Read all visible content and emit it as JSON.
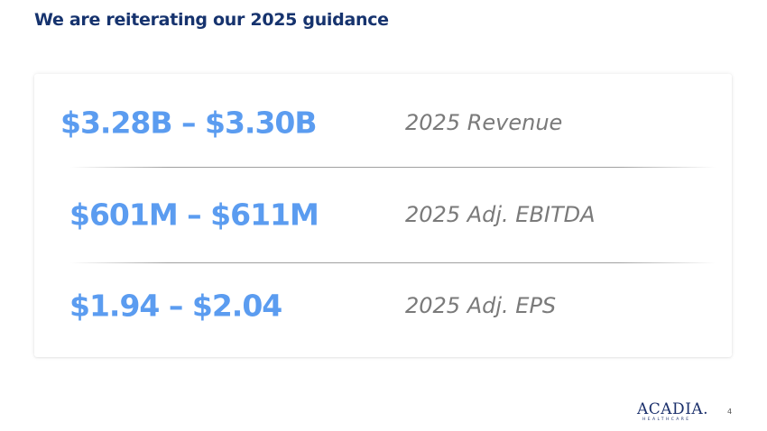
{
  "title": "We are reiterating our 2025 guidance",
  "guidance": [
    {
      "value": "$3.28B – $3.30B",
      "label": "2025 Revenue"
    },
    {
      "value": "$601M – $611M",
      "label": "2025 Adj. EBITDA"
    },
    {
      "value": "$1.94 – $2.04",
      "label": "2025 Adj. EPS"
    }
  ],
  "logo": {
    "name": "ACADIA.",
    "subtitle": "HEALTHCARE"
  },
  "page_number": "4",
  "colors": {
    "title": "#16336e",
    "value": "#5b9cf0",
    "label": "#7a7a7a",
    "logo": "#1a2f6b"
  }
}
